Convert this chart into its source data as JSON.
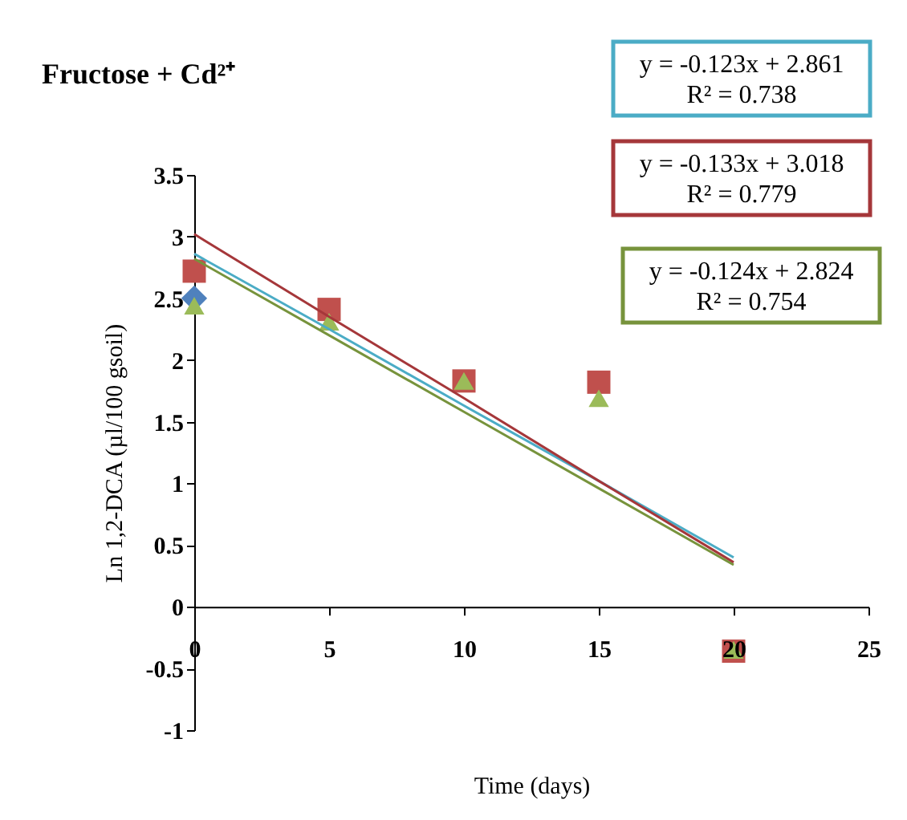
{
  "chart_data": {
    "type": "scatter",
    "title": "Fructose + Cd²⁺",
    "xlabel": "Time (days)",
    "ylabel": "Ln 1,2-DCA (µl/100 gsoil)",
    "x": [
      0,
      5,
      10,
      15,
      20
    ],
    "series": [
      {
        "color": "#4f81bd",
        "marker": "diamond",
        "values": [
          2.5,
          null,
          null,
          null,
          null
        ]
      },
      {
        "color": "#c0504d",
        "marker": "square",
        "values": [
          2.72,
          2.41,
          1.83,
          1.82,
          -0.36
        ]
      },
      {
        "color": "#9bbb59",
        "marker": "triangle",
        "values": [
          2.44,
          2.31,
          1.83,
          1.69,
          -0.35
        ]
      },
      {
        "type": "line",
        "color": "#4bacc6",
        "values": [
          2.86,
          2.25,
          1.63,
          1.02,
          0.4
        ]
      },
      {
        "type": "line",
        "color": "#a5373a",
        "values": [
          3.02,
          2.35,
          1.69,
          1.02,
          0.36
        ]
      },
      {
        "type": "line",
        "color": "#77933c",
        "values": [
          2.82,
          2.2,
          1.58,
          0.96,
          0.34
        ]
      }
    ],
    "annotations": [
      "y = -0.123x + 2.861\nR² = 0.738",
      "y = -0.133x + 3.018\nR² = 0.779",
      "y = -0.124x + 2.824\nR² = 0.754"
    ],
    "xlim": [
      0,
      25
    ],
    "xticks": [
      0,
      5,
      10,
      15,
      20,
      25
    ],
    "ylim": [
      -1,
      3.5
    ],
    "yticks": [
      -1,
      -0.5,
      0,
      0.5,
      1,
      1.5,
      2,
      2.5,
      3,
      3.5
    ],
    "grid": false
  }
}
